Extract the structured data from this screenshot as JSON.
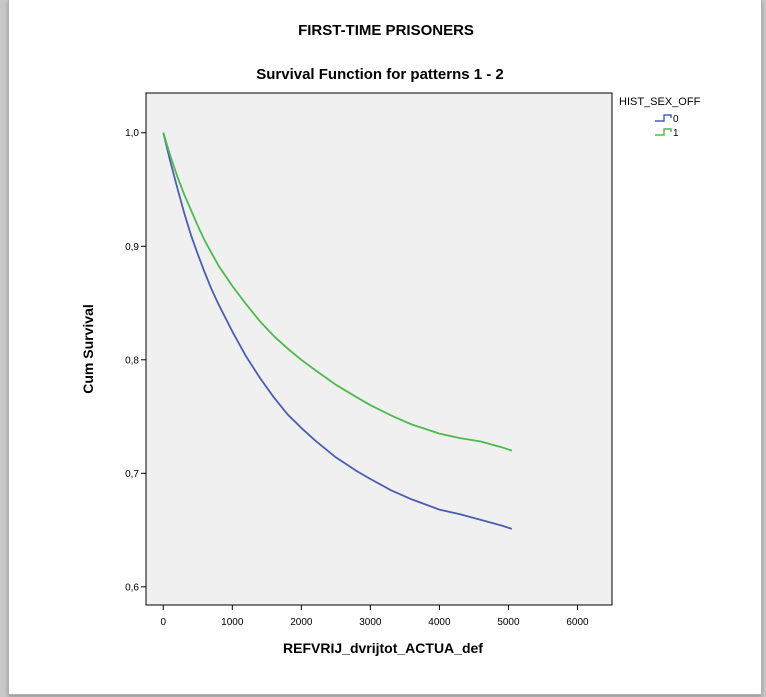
{
  "figure_title": "FIRST-TIME PRISONERS",
  "chart_data": {
    "type": "line",
    "title": "Survival Function for patterns 1 - 2",
    "xlabel": "REFVRIJ_dvrijtot_ACTUA_def",
    "ylabel": "Cum Survival",
    "xlim": [
      -250,
      6500
    ],
    "ylim": [
      0.584,
      1.035
    ],
    "x_ticks": [
      0,
      1000,
      2000,
      3000,
      4000,
      5000,
      6000
    ],
    "x_tick_labels": [
      "0",
      "1000",
      "2000",
      "3000",
      "4000",
      "5000",
      "6000"
    ],
    "y_ticks": [
      0.6,
      0.7,
      0.8,
      0.9,
      1.0
    ],
    "y_tick_labels": [
      "0,6",
      "0,7",
      "0,8",
      "0,9",
      "1,0"
    ],
    "grid": false,
    "legend": {
      "title": "HIST_SEX_OFF",
      "placement": "top-right outside"
    },
    "series": [
      {
        "name": "0",
        "color": "#4a5fb0",
        "x": [
          0,
          100,
          200,
          300,
          400,
          500,
          600,
          700,
          800,
          1000,
          1200,
          1400,
          1600,
          1800,
          2000,
          2200,
          2500,
          2800,
          3000,
          3300,
          3600,
          4000,
          4300,
          4600,
          4900,
          5050
        ],
        "y": [
          1.0,
          0.975,
          0.952,
          0.93,
          0.91,
          0.893,
          0.877,
          0.862,
          0.849,
          0.825,
          0.803,
          0.784,
          0.767,
          0.752,
          0.74,
          0.729,
          0.714,
          0.702,
          0.695,
          0.685,
          0.677,
          0.668,
          0.664,
          0.659,
          0.654,
          0.651
        ]
      },
      {
        "name": "1",
        "color": "#4cba4c",
        "x": [
          0,
          100,
          200,
          300,
          400,
          500,
          600,
          800,
          1000,
          1200,
          1400,
          1600,
          1800,
          2000,
          2200,
          2500,
          2800,
          3000,
          3300,
          3600,
          3800,
          4000,
          4300,
          4600,
          4900,
          5050
        ],
        "y": [
          1.0,
          0.98,
          0.962,
          0.946,
          0.932,
          0.918,
          0.905,
          0.883,
          0.865,
          0.849,
          0.834,
          0.821,
          0.81,
          0.8,
          0.791,
          0.778,
          0.767,
          0.76,
          0.751,
          0.743,
          0.739,
          0.735,
          0.731,
          0.728,
          0.723,
          0.72
        ]
      }
    ]
  }
}
